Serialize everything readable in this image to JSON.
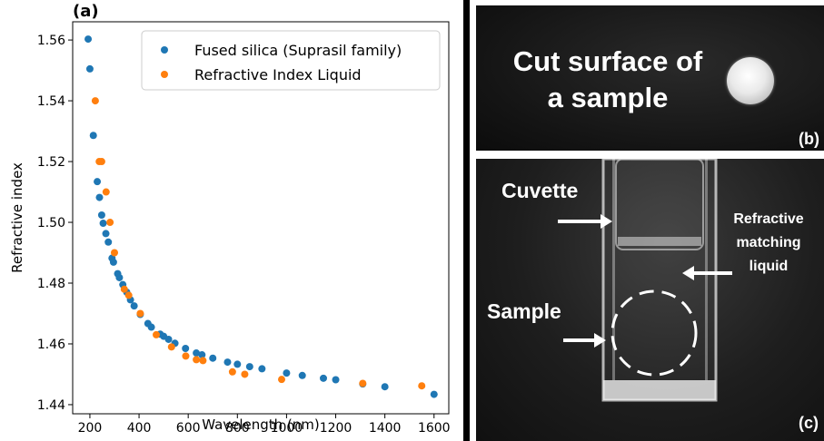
{
  "panels": {
    "a_label": "(a)",
    "b_label": "(b)",
    "c_label": "(c)"
  },
  "chart_data": {
    "type": "scatter",
    "title": "",
    "xlabel": "Wavelength (nm)",
    "ylabel": "Refractive index",
    "xlim": [
      130,
      1660
    ],
    "ylim": [
      1.437,
      1.566
    ],
    "xticks": [
      200,
      400,
      600,
      800,
      1000,
      1200,
      1400,
      1600
    ],
    "yticks": [
      1.44,
      1.46,
      1.48,
      1.5,
      1.52,
      1.54,
      1.56
    ],
    "grid": false,
    "legend_position": "top-right",
    "series": [
      {
        "name": "Fused silica (Suprasil family)",
        "color": "#1f77b4",
        "points": [
          [
            193,
            1.5603
          ],
          [
            200,
            1.5505
          ],
          [
            214,
            1.5286
          ],
          [
            230,
            1.5134
          ],
          [
            239,
            1.5082
          ],
          [
            248,
            1.5024
          ],
          [
            254,
            1.4997
          ],
          [
            265,
            1.4963
          ],
          [
            275,
            1.4935
          ],
          [
            290,
            1.4882
          ],
          [
            296,
            1.4869
          ],
          [
            313,
            1.4831
          ],
          [
            320,
            1.4818
          ],
          [
            334,
            1.4795
          ],
          [
            350,
            1.477
          ],
          [
            365,
            1.4745
          ],
          [
            380,
            1.4725
          ],
          [
            405,
            1.4697
          ],
          [
            436,
            1.4667
          ],
          [
            450,
            1.4655
          ],
          [
            486,
            1.4632
          ],
          [
            500,
            1.4625
          ],
          [
            520,
            1.4615
          ],
          [
            546,
            1.4602
          ],
          [
            589,
            1.4585
          ],
          [
            633,
            1.457
          ],
          [
            656,
            1.4564
          ],
          [
            700,
            1.4553
          ],
          [
            760,
            1.454
          ],
          [
            800,
            1.4533
          ],
          [
            850,
            1.4525
          ],
          [
            900,
            1.4518
          ],
          [
            1000,
            1.4504
          ],
          [
            1064,
            1.4496
          ],
          [
            1150,
            1.4487
          ],
          [
            1200,
            1.4482
          ],
          [
            1310,
            1.4468
          ],
          [
            1400,
            1.4459
          ],
          [
            1600,
            1.4434
          ]
        ]
      },
      {
        "name": "Refractive Index Liquid",
        "color": "#ff7f0e",
        "points": [
          [
            222,
            1.54
          ],
          [
            238,
            1.52
          ],
          [
            248,
            1.52
          ],
          [
            266,
            1.51
          ],
          [
            282,
            1.5
          ],
          [
            300,
            1.49
          ],
          [
            340,
            1.478
          ],
          [
            358,
            1.476
          ],
          [
            405,
            1.47
          ],
          [
            470,
            1.463
          ],
          [
            532,
            1.459
          ],
          [
            590,
            1.456
          ],
          [
            633,
            1.4548
          ],
          [
            660,
            1.4545
          ],
          [
            780,
            1.4508
          ],
          [
            830,
            1.45
          ],
          [
            980,
            1.4483
          ],
          [
            1310,
            1.447
          ],
          [
            1550,
            1.4462
          ]
        ]
      }
    ]
  },
  "photo_b": {
    "caption_line1": "Cut surface of",
    "caption_line2": "a sample"
  },
  "photo_c": {
    "label_cuvette": "Cuvette",
    "label_liquid_line1": "Refractive",
    "label_liquid_line2": "matching",
    "label_liquid_line3": "liquid",
    "label_sample": "Sample"
  }
}
